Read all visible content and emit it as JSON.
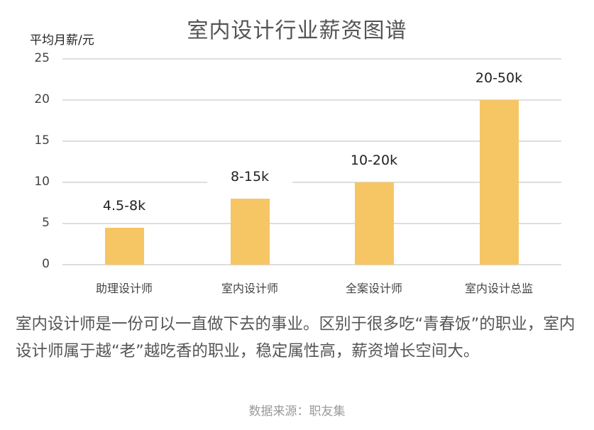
{
  "chart_data": {
    "type": "bar",
    "title": "室内设计行业薪资图谱",
    "ylabel": "平均月薪/元",
    "xlabel": "",
    "ylim": [
      0,
      25
    ],
    "yticks": [
      "0",
      "5",
      "10",
      "15",
      "20",
      "25"
    ],
    "grid": true,
    "categories": [
      "助理设计师",
      "室内设计师",
      "全案设计师",
      "室内设计总监"
    ],
    "values": [
      4.5,
      8,
      10,
      20
    ],
    "data_labels": [
      "4.5-8k",
      "8-15k",
      "10-20k",
      "20-50k"
    ],
    "bar_color": "#F6C564"
  },
  "description": "室内设计师是一份可以一直做下去的事业。区别于很多吃“青春饭”的职业，室内设计师属于越“老”越吃香的职业，稳定属性高，薪资增长空间大。",
  "source": "数据来源：职友集"
}
